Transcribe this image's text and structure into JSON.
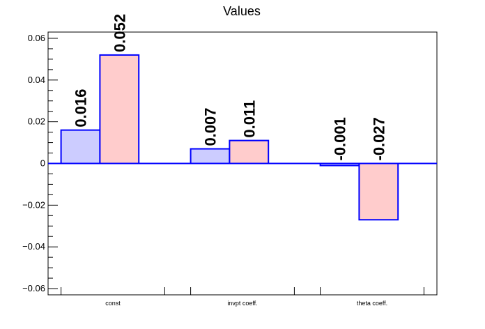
{
  "chart_data": {
    "type": "bar",
    "title": "Values",
    "categories": [
      "const",
      "invpt coeff.",
      "theta coeff."
    ],
    "series": [
      {
        "values": [
          0.016,
          0.007,
          -0.001
        ],
        "labels": [
          "0.016",
          "0.007",
          "-0.001"
        ],
        "color": "#ccccff"
      },
      {
        "values": [
          0.052,
          0.011,
          -0.027
        ],
        "labels": [
          "0.052",
          "0.011",
          "-0.027"
        ],
        "color": "#ffcccc"
      }
    ],
    "ylim": [
      -0.063,
      0.063
    ],
    "yticks": [
      -0.06,
      -0.04,
      -0.02,
      0,
      0.02,
      0.04,
      0.06
    ],
    "ytick_labels": [
      "−0.06",
      "−0.04",
      "−0.02",
      "0",
      "0.02",
      "0.04",
      "0.06"
    ],
    "bar_edge_color": "#0000ff",
    "grid": false
  }
}
